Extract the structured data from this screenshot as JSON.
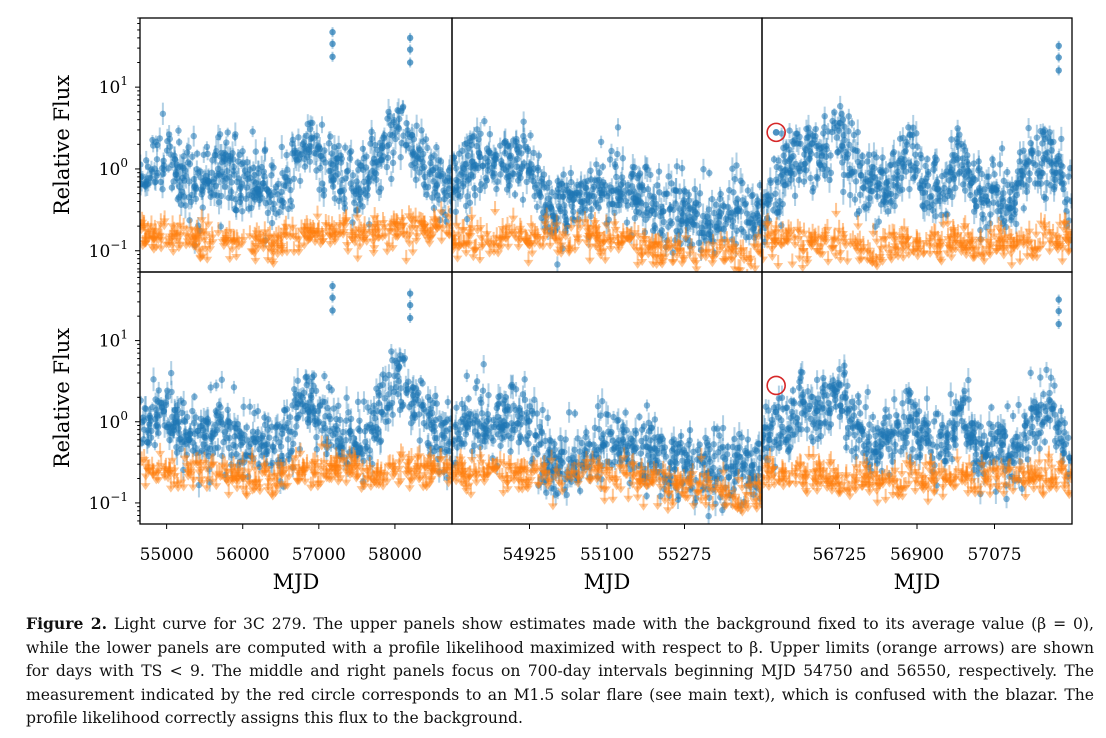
{
  "figure": {
    "caption_label": "Figure 2.",
    "caption_text": "Light curve for 3C 279. The upper panels show estimates made with the background fixed to its average value (β = 0), while the lower panels are computed with a profile likelihood maximized with respect to β. Upper limits (orange arrows) are shown for days with TS < 9. The middle and right panels focus on 700-day intervals beginning MJD 54750 and 56550, respectively. The measurement indicated by the red circle corresponds to an M1.5 solar flare (see main text), which is confused with the blazar. The profile likelihood correctly assigns this flux to the background."
  },
  "colors": {
    "detection": "#1f77b4",
    "upper_limit": "#ff7f0e",
    "solar_flare_circle": "#d62728"
  },
  "chart_data": [
    {
      "type": "scatter",
      "row": "upper",
      "column": "full",
      "ylabel": "Relative Flux",
      "xlabel": "",
      "yscale": "log",
      "ylim": [
        0.055,
        70
      ],
      "xlim": [
        54650,
        58750
      ],
      "xticks": [],
      "yticks": [
        {
          "value": 0.1,
          "base": "10",
          "exp": "−1"
        },
        {
          "value": 1,
          "base": "10",
          "exp": "0"
        },
        {
          "value": 10,
          "base": "10",
          "exp": "1"
        }
      ],
      "series": [
        {
          "type": "points",
          "x": [
            54700,
            54900,
            55100,
            55300,
            55500,
            55700,
            55900,
            56100,
            56300,
            56500,
            56700,
            56900,
            57100,
            57300,
            57500,
            57700,
            57900,
            58100,
            58300,
            58500,
            58700
          ],
          "values": [
            0.7,
            1.5,
            1.0,
            0.7,
            0.6,
            1.1,
            0.8,
            0.55,
            0.6,
            0.5,
            1.3,
            1.8,
            1.2,
            0.8,
            0.6,
            0.9,
            2.0,
            3.5,
            1.5,
            0.9,
            0.6
          ]
        },
        {
          "type": "upper_limits",
          "x": [
            54700,
            55000,
            55300,
            55600,
            55900,
            56200,
            56500,
            56800,
            57100,
            57400,
            57700,
            58000,
            58300,
            58600
          ],
          "values": [
            0.22,
            0.18,
            0.2,
            0.17,
            0.16,
            0.15,
            0.17,
            0.2,
            0.22,
            0.2,
            0.21,
            0.22,
            0.24,
            0.25
          ]
        }
      ],
      "annotations": [
        {
          "x": 57180,
          "y": 47
        },
        {
          "x": 58200,
          "y": 40
        }
      ]
    },
    {
      "type": "scatter",
      "row": "upper",
      "column": "zoom-54750",
      "yscale": "log",
      "ylim": [
        0.055,
        70
      ],
      "xlim": [
        54750,
        55450
      ],
      "xticks": [],
      "series": [
        {
          "type": "points",
          "x": [
            54760,
            54800,
            54840,
            54880,
            54920,
            54960,
            55000,
            55040,
            55080,
            55120,
            55160,
            55200,
            55240,
            55280,
            55320,
            55360,
            55400,
            55440
          ],
          "values": [
            0.6,
            1.4,
            1.0,
            1.2,
            1.5,
            0.4,
            0.3,
            0.45,
            0.5,
            0.7,
            0.5,
            0.4,
            0.35,
            0.3,
            0.25,
            0.28,
            0.3,
            0.25
          ]
        },
        {
          "type": "upper_limits",
          "x": [
            54950,
            55000,
            55050,
            55100,
            55150,
            55200,
            55250,
            55300,
            55350,
            55400,
            55440
          ],
          "values": [
            0.18,
            0.17,
            0.2,
            0.18,
            0.16,
            0.14,
            0.13,
            0.12,
            0.12,
            0.11,
            0.11
          ]
        }
      ]
    },
    {
      "type": "scatter",
      "row": "upper",
      "column": "zoom-56550",
      "yscale": "log",
      "ylim": [
        0.055,
        70
      ],
      "xlim": [
        56550,
        57250
      ],
      "xticks": [],
      "series": [
        {
          "type": "points",
          "x": [
            56560,
            56600,
            56640,
            56680,
            56720,
            56760,
            56800,
            56840,
            56880,
            56920,
            56960,
            57000,
            57040,
            57080,
            57120,
            57160,
            57200,
            57240
          ],
          "values": [
            0.35,
            0.7,
            1.8,
            1.2,
            2.8,
            0.9,
            0.6,
            0.55,
            1.4,
            0.6,
            0.5,
            1.5,
            0.4,
            0.5,
            0.4,
            1.3,
            1.6,
            0.4
          ]
        },
        {
          "type": "upper_limits",
          "x": [
            56580,
            56640,
            56700,
            56760,
            56820,
            56880,
            56940,
            57000,
            57060,
            57120,
            57180,
            57240
          ],
          "values": [
            0.18,
            0.17,
            0.16,
            0.15,
            0.14,
            0.16,
            0.15,
            0.17,
            0.16,
            0.16,
            0.18,
            0.18
          ]
        }
      ],
      "annotations": [
        {
          "x": 57220,
          "y": 32
        }
      ],
      "solar_flare": {
        "x": 56582,
        "y": 2.8
      }
    },
    {
      "type": "scatter",
      "row": "lower",
      "column": "full",
      "ylabel": "Relative Flux",
      "xlabel": "MJD",
      "yscale": "log",
      "ylim": [
        0.055,
        70
      ],
      "xlim": [
        54650,
        58750
      ],
      "xticks": [
        {
          "value": 55000,
          "label": "55000"
        },
        {
          "value": 56000,
          "label": "56000"
        },
        {
          "value": 57000,
          "label": "57000"
        },
        {
          "value": 58000,
          "label": "58000"
        }
      ],
      "yticks": [
        {
          "value": 0.1,
          "base": "10",
          "exp": "−1"
        },
        {
          "value": 1,
          "base": "10",
          "exp": "0"
        },
        {
          "value": 10,
          "base": "10",
          "exp": "1"
        }
      ],
      "series": [
        {
          "type": "points",
          "x": [
            54700,
            54900,
            55100,
            55300,
            55500,
            55700,
            55900,
            56100,
            56300,
            56500,
            56700,
            56900,
            57100,
            57300,
            57500,
            57700,
            57900,
            58100,
            58300,
            58500,
            58700
          ],
          "values": [
            0.7,
            1.4,
            0.9,
            0.6,
            0.5,
            1.0,
            0.7,
            0.5,
            0.5,
            0.45,
            1.2,
            1.7,
            1.1,
            0.7,
            0.55,
            0.8,
            1.9,
            3.3,
            1.4,
            0.8,
            0.55
          ]
        },
        {
          "type": "upper_limits",
          "x": [
            54700,
            55000,
            55300,
            55600,
            55900,
            56200,
            56500,
            56800,
            57100,
            57400,
            57700,
            58000,
            58300,
            58600
          ],
          "values": [
            0.35,
            0.3,
            0.32,
            0.3,
            0.28,
            0.27,
            0.3,
            0.32,
            0.34,
            0.32,
            0.3,
            0.33,
            0.35,
            0.36
          ]
        }
      ],
      "annotations": [
        {
          "x": 57180,
          "y": 47
        },
        {
          "x": 58200,
          "y": 38
        }
      ]
    },
    {
      "type": "scatter",
      "row": "lower",
      "column": "zoom-54750",
      "xlabel": "MJD",
      "yscale": "log",
      "ylim": [
        0.055,
        70
      ],
      "xlim": [
        54750,
        55450
      ],
      "xticks": [
        {
          "value": 54925,
          "label": "54925"
        },
        {
          "value": 55100,
          "label": "55100"
        },
        {
          "value": 55275,
          "label": "55275"
        }
      ],
      "series": [
        {
          "type": "points",
          "x": [
            54760,
            54800,
            54840,
            54880,
            54920,
            54960,
            55000,
            55040,
            55080,
            55120,
            55160,
            55200,
            55240,
            55280,
            55320,
            55360,
            55400,
            55440
          ],
          "values": [
            0.55,
            1.3,
            0.9,
            1.1,
            1.4,
            0.35,
            0.3,
            0.4,
            0.45,
            0.6,
            0.45,
            0.35,
            0.3,
            0.28,
            0.25,
            0.25,
            0.28,
            0.22
          ]
        },
        {
          "type": "upper_limits",
          "x": [
            54950,
            55000,
            55050,
            55100,
            55150,
            55200,
            55250,
            55300,
            55350,
            55400,
            55440
          ],
          "values": [
            0.3,
            0.28,
            0.3,
            0.28,
            0.26,
            0.24,
            0.22,
            0.2,
            0.18,
            0.17,
            0.16
          ]
        }
      ]
    },
    {
      "type": "scatter",
      "row": "lower",
      "column": "zoom-56550",
      "xlabel": "MJD",
      "yscale": "log",
      "ylim": [
        0.055,
        70
      ],
      "xlim": [
        56550,
        57250
      ],
      "xticks": [
        {
          "value": 56725,
          "label": "56725"
        },
        {
          "value": 56900,
          "label": "56900"
        },
        {
          "value": 57075,
          "label": "57075"
        }
      ],
      "series": [
        {
          "type": "points",
          "x": [
            56560,
            56600,
            56640,
            56680,
            56720,
            56760,
            56800,
            56840,
            56880,
            56920,
            56960,
            57000,
            57040,
            57080,
            57120,
            57160,
            57200,
            57240
          ],
          "values": [
            0.6,
            0.7,
            1.7,
            1.1,
            2.6,
            0.8,
            0.55,
            0.5,
            1.3,
            0.55,
            0.45,
            1.4,
            0.35,
            0.45,
            0.35,
            1.2,
            1.5,
            0.35
          ]
        },
        {
          "type": "upper_limits",
          "x": [
            56580,
            56640,
            56700,
            56760,
            56820,
            56880,
            56940,
            57000,
            57060,
            57120,
            57180,
            57240
          ],
          "values": [
            0.3,
            0.28,
            0.27,
            0.26,
            0.24,
            0.26,
            0.25,
            0.27,
            0.26,
            0.26,
            0.28,
            0.3
          ]
        }
      ],
      "annotations": [
        {
          "x": 57220,
          "y": 32
        }
      ],
      "solar_flare": {
        "x": 56582,
        "y": 2.8
      }
    }
  ]
}
